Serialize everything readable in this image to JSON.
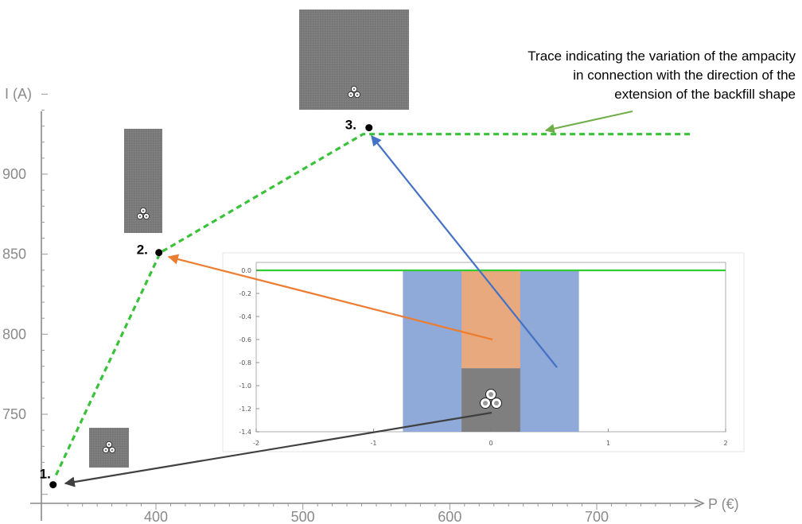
{
  "chart_data": [
    {
      "type": "line",
      "xlabel": "P (€)",
      "ylabel": "I (A)",
      "xlim": [
        320,
        775
      ],
      "ylim": [
        690,
        960
      ],
      "x_ticks": [
        400,
        500,
        600,
        700
      ],
      "y_ticks": [
        750,
        800,
        850,
        900
      ],
      "grid": false,
      "series": [
        {
          "color": "#39c239",
          "style": "dashed",
          "points": [
            [
              332,
              712
            ],
            [
              403,
              851
            ],
            [
              541,
              925
            ],
            [
              765,
              925
            ]
          ]
        }
      ],
      "points": [
        {
          "label": "1.",
          "x": 330,
          "y": 706
        },
        {
          "label": "2.",
          "x": 402,
          "y": 851
        },
        {
          "label": "3.",
          "x": 545,
          "y": 929
        }
      ],
      "annotation": {
        "lines": [
          "Trace indicating the variation of the ampacity",
          "in connection with the direction of the",
          "extension of the backfill shape"
        ],
        "arrow_color": "#70ad47"
      }
    },
    {
      "type": "area",
      "xlim": [
        -2,
        2
      ],
      "ylim": [
        -1.4,
        0
      ],
      "x_ticks": [
        -2,
        -1,
        0,
        1,
        2
      ],
      "y_ticks": [
        0.0,
        -0.2,
        -0.4,
        -0.6,
        -0.8,
        -1.0,
        -1.2,
        -1.4
      ],
      "surface_line": {
        "y": 0.0,
        "color": "#33cc33"
      },
      "regions": [
        {
          "x": [
            -0.75,
            0.75
          ],
          "y": [
            -1.4,
            0.0
          ],
          "color": "#8fa9d8"
        },
        {
          "x": [
            -0.25,
            0.25
          ],
          "y": [
            -0.85,
            0.0
          ],
          "color": "#e9a97f"
        },
        {
          "x": [
            -0.25,
            0.25
          ],
          "y": [
            -1.4,
            -0.85
          ],
          "color": "#7f7f7f"
        }
      ]
    }
  ],
  "arrow_colors": {
    "orange": "#ed7d31",
    "blue": "#4472c4",
    "dark": "#404040"
  }
}
